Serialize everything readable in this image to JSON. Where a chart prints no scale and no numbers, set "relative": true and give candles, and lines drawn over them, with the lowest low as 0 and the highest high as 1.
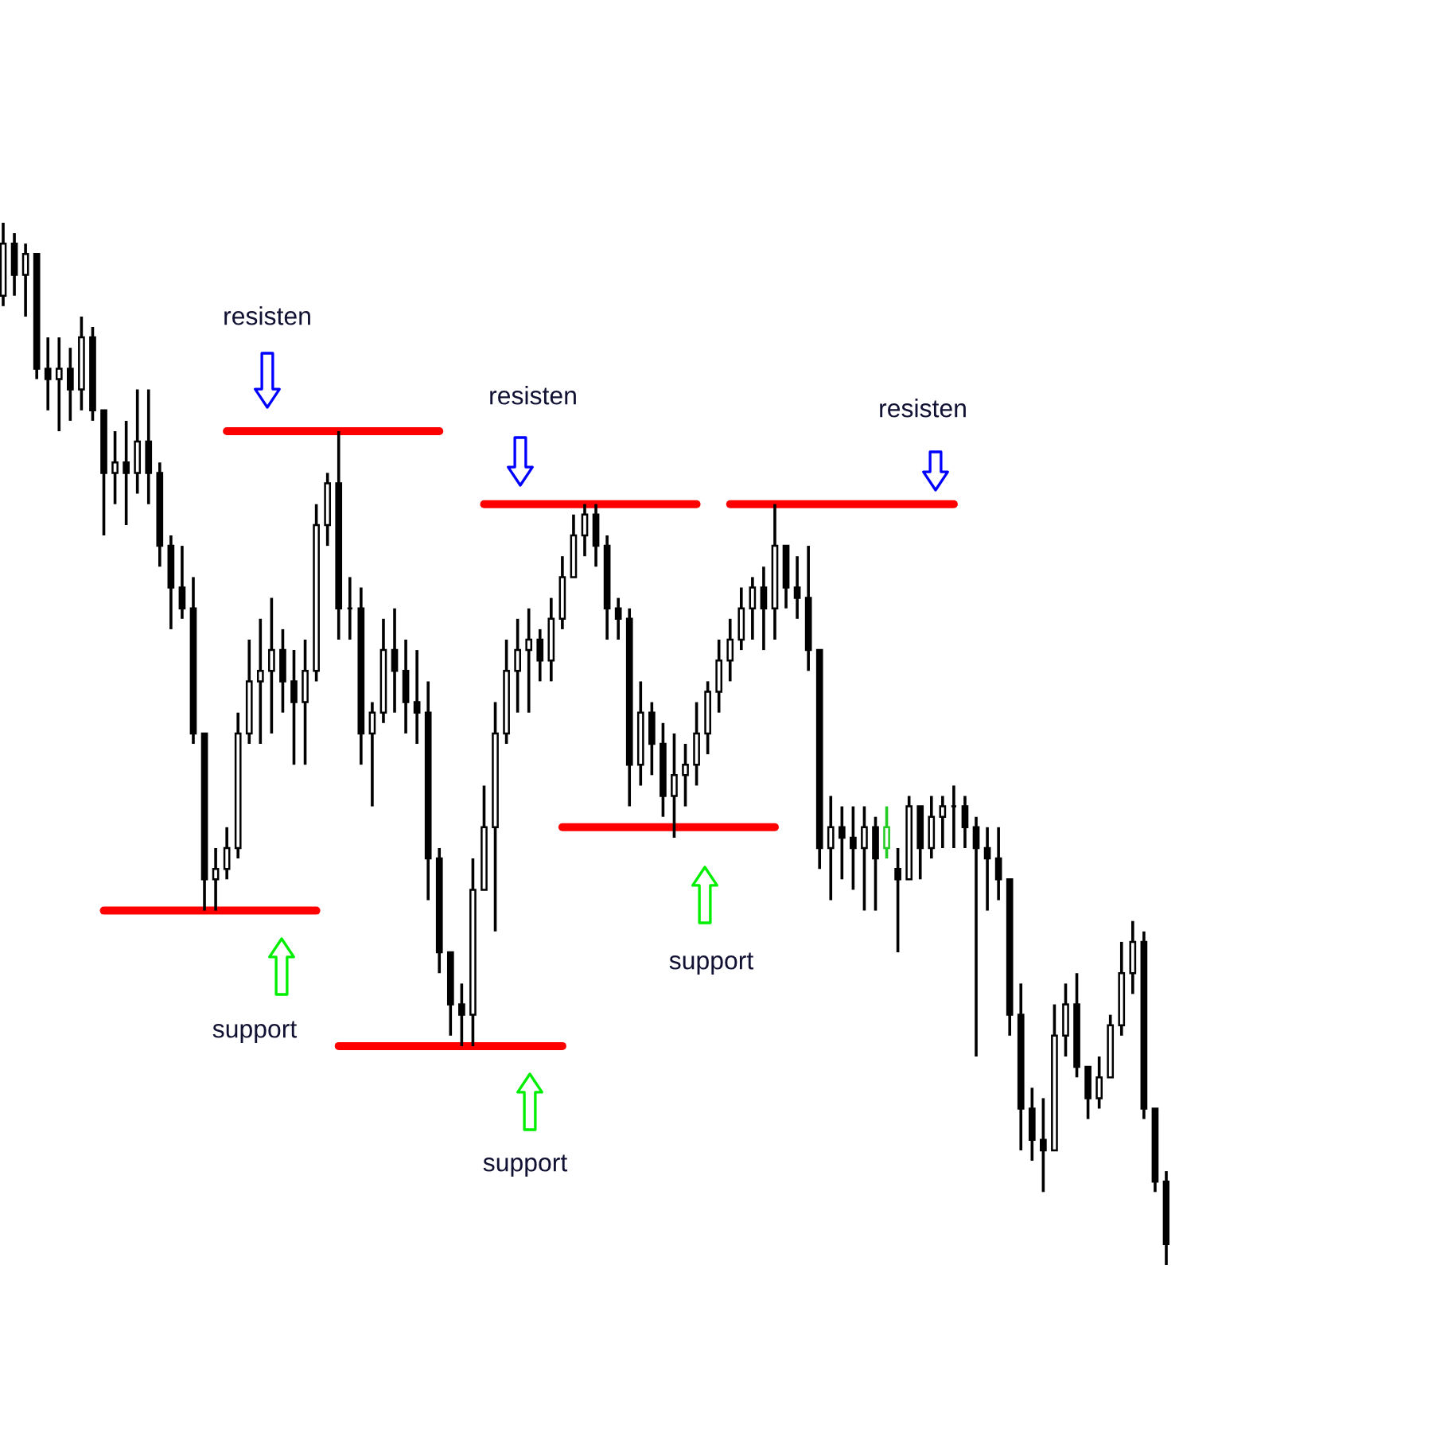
{
  "chart_data": {
    "type": "candlestick",
    "relative": true,
    "categories": [
      null,
      null,
      null,
      null,
      null,
      null,
      null,
      null,
      null,
      null,
      null,
      null,
      null,
      null,
      null,
      null,
      null,
      null,
      null,
      null,
      null,
      null,
      null,
      null,
      null,
      null,
      null,
      null,
      null,
      null,
      null,
      null,
      null,
      null,
      null,
      null,
      null,
      null,
      null,
      null,
      null,
      null,
      null,
      null,
      null,
      null,
      null,
      null,
      null,
      null,
      null,
      null,
      null,
      null,
      null,
      null,
      null,
      null,
      null,
      null,
      null,
      null,
      null,
      null,
      null,
      null,
      null,
      null,
      null,
      null,
      null,
      null,
      null,
      null,
      null,
      null,
      null,
      null,
      null,
      null,
      null,
      null,
      null,
      null,
      null,
      null,
      null,
      null,
      null,
      null,
      null,
      null,
      null,
      null,
      null,
      null,
      null,
      null,
      null,
      null,
      null,
      null,
      null,
      null,
      null
    ],
    "ohlc": [
      [
        0.93,
        1.0,
        0.92,
        0.98
      ],
      [
        0.98,
        0.99,
        0.93,
        0.95
      ],
      [
        0.95,
        0.98,
        0.91,
        0.97
      ],
      [
        0.97,
        0.97,
        0.85,
        0.86
      ],
      [
        0.86,
        0.89,
        0.82,
        0.85
      ],
      [
        0.85,
        0.89,
        0.8,
        0.86
      ],
      [
        0.86,
        0.88,
        0.81,
        0.84
      ],
      [
        0.84,
        0.91,
        0.82,
        0.89
      ],
      [
        0.89,
        0.9,
        0.81,
        0.82
      ],
      [
        0.82,
        0.82,
        0.7,
        0.76
      ],
      [
        0.76,
        0.8,
        0.73,
        0.77
      ],
      [
        0.77,
        0.81,
        0.71,
        0.76
      ],
      [
        0.76,
        0.84,
        0.74,
        0.79
      ],
      [
        0.79,
        0.84,
        0.73,
        0.76
      ],
      [
        0.76,
        0.77,
        0.67,
        0.69
      ],
      [
        0.69,
        0.7,
        0.61,
        0.65
      ],
      [
        0.65,
        0.69,
        0.62,
        0.63
      ],
      [
        0.63,
        0.66,
        0.5,
        0.51
      ],
      [
        0.51,
        0.51,
        0.34,
        0.37
      ],
      [
        0.37,
        0.4,
        0.34,
        0.38
      ],
      [
        0.38,
        0.42,
        0.37,
        0.4
      ],
      [
        0.4,
        0.53,
        0.39,
        0.51
      ],
      [
        0.51,
        0.6,
        0.5,
        0.56
      ],
      [
        0.56,
        0.62,
        0.5,
        0.57
      ],
      [
        0.57,
        0.64,
        0.51,
        0.59
      ],
      [
        0.59,
        0.61,
        0.53,
        0.56
      ],
      [
        0.56,
        0.59,
        0.48,
        0.54
      ],
      [
        0.54,
        0.6,
        0.48,
        0.57
      ],
      [
        0.57,
        0.73,
        0.56,
        0.71
      ],
      [
        0.71,
        0.76,
        0.69,
        0.75
      ],
      [
        0.75,
        0.8,
        0.6,
        0.63
      ],
      [
        0.63,
        0.66,
        0.6,
        0.63
      ],
      [
        0.63,
        0.65,
        0.48,
        0.51
      ],
      [
        0.51,
        0.54,
        0.44,
        0.53
      ],
      [
        0.53,
        0.62,
        0.52,
        0.59
      ],
      [
        0.59,
        0.63,
        0.53,
        0.57
      ],
      [
        0.57,
        0.6,
        0.51,
        0.54
      ],
      [
        0.54,
        0.59,
        0.5,
        0.53
      ],
      [
        0.53,
        0.56,
        0.35,
        0.39
      ],
      [
        0.39,
        0.4,
        0.28,
        0.3
      ],
      [
        0.3,
        0.3,
        0.22,
        0.25
      ],
      [
        0.25,
        0.27,
        0.21,
        0.24
      ],
      [
        0.24,
        0.39,
        0.21,
        0.36
      ],
      [
        0.36,
        0.46,
        0.36,
        0.42
      ],
      [
        0.42,
        0.54,
        0.32,
        0.51
      ],
      [
        0.51,
        0.6,
        0.5,
        0.57
      ],
      [
        0.57,
        0.62,
        0.53,
        0.59
      ],
      [
        0.59,
        0.63,
        0.53,
        0.6
      ],
      [
        0.6,
        0.61,
        0.56,
        0.58
      ],
      [
        0.58,
        0.64,
        0.56,
        0.62
      ],
      [
        0.62,
        0.68,
        0.61,
        0.66
      ],
      [
        0.66,
        0.72,
        0.66,
        0.7
      ],
      [
        0.7,
        0.73,
        0.68,
        0.72
      ],
      [
        0.72,
        0.73,
        0.67,
        0.69
      ],
      [
        0.69,
        0.7,
        0.6,
        0.63
      ],
      [
        0.63,
        0.64,
        0.6,
        0.62
      ],
      [
        0.62,
        0.63,
        0.44,
        0.48
      ],
      [
        0.48,
        0.56,
        0.46,
        0.53
      ],
      [
        0.53,
        0.54,
        0.47,
        0.5
      ],
      [
        0.5,
        0.52,
        0.43,
        0.45
      ],
      [
        0.45,
        0.51,
        0.41,
        0.47
      ],
      [
        0.47,
        0.5,
        0.44,
        0.48
      ],
      [
        0.48,
        0.54,
        0.46,
        0.51
      ],
      [
        0.51,
        0.56,
        0.49,
        0.55
      ],
      [
        0.55,
        0.6,
        0.53,
        0.58
      ],
      [
        0.58,
        0.62,
        0.56,
        0.6
      ],
      [
        0.6,
        0.65,
        0.59,
        0.63
      ],
      [
        0.63,
        0.66,
        0.6,
        0.65
      ],
      [
        0.65,
        0.67,
        0.59,
        0.63
      ],
      [
        0.63,
        0.73,
        0.6,
        0.69
      ],
      [
        0.69,
        0.69,
        0.63,
        0.65
      ],
      [
        0.65,
        0.68,
        0.62,
        0.64
      ],
      [
        0.64,
        0.69,
        0.57,
        0.59
      ],
      [
        0.59,
        0.59,
        0.38,
        0.4
      ],
      [
        0.4,
        0.45,
        0.35,
        0.42
      ],
      [
        0.42,
        0.44,
        0.37,
        0.41
      ],
      [
        0.41,
        0.44,
        0.36,
        0.4
      ],
      [
        0.4,
        0.44,
        0.34,
        0.42
      ],
      [
        0.42,
        0.43,
        0.34,
        0.39
      ],
      [
        0.4,
        0.44,
        0.39,
        0.42
      ],
      [
        0.38,
        0.4,
        0.3,
        0.37
      ],
      [
        0.37,
        0.45,
        0.37,
        0.44
      ],
      [
        0.44,
        0.44,
        0.37,
        0.4
      ],
      [
        0.4,
        0.45,
        0.39,
        0.43
      ],
      [
        0.43,
        0.45,
        0.4,
        0.44
      ],
      [
        0.44,
        0.46,
        0.4,
        0.44
      ],
      [
        0.44,
        0.45,
        0.4,
        0.42
      ],
      [
        0.42,
        0.43,
        0.2,
        0.4
      ],
      [
        0.4,
        0.42,
        0.34,
        0.39
      ],
      [
        0.39,
        0.42,
        0.35,
        0.37
      ],
      [
        0.37,
        0.37,
        0.22,
        0.24
      ],
      [
        0.24,
        0.27,
        0.11,
        0.15
      ],
      [
        0.15,
        0.17,
        0.1,
        0.12
      ],
      [
        0.12,
        0.16,
        0.07,
        0.11
      ],
      [
        0.11,
        0.25,
        0.11,
        0.22
      ],
      [
        0.22,
        0.27,
        0.2,
        0.25
      ],
      [
        0.25,
        0.28,
        0.18,
        0.19
      ],
      [
        0.19,
        0.19,
        0.14,
        0.16
      ],
      [
        0.16,
        0.2,
        0.15,
        0.18
      ],
      [
        0.18,
        0.24,
        0.18,
        0.23
      ],
      [
        0.23,
        0.31,
        0.22,
        0.28
      ],
      [
        0.28,
        0.33,
        0.26,
        0.31
      ],
      [
        0.31,
        0.32,
        0.14,
        0.15
      ],
      [
        0.15,
        0.15,
        0.07,
        0.08
      ],
      [
        0.08,
        0.09,
        0.0,
        0.02
      ]
    ],
    "colors": [
      "#000000",
      "#000000",
      "#000000",
      "#000000",
      "#000000",
      "#000000",
      "#000000",
      "#000000",
      "#000000",
      "#000000",
      "#000000",
      "#000000",
      "#000000",
      "#000000",
      "#000000",
      "#000000",
      "#000000",
      "#000000",
      "#000000",
      "#000000",
      "#000000",
      "#000000",
      "#000000",
      "#000000",
      "#000000",
      "#000000",
      "#000000",
      "#000000",
      "#000000",
      "#000000",
      "#000000",
      "#000000",
      "#000000",
      "#000000",
      "#000000",
      "#000000",
      "#000000",
      "#000000",
      "#000000",
      "#000000",
      "#000000",
      "#000000",
      "#000000",
      "#000000",
      "#000000",
      "#000000",
      "#000000",
      "#000000",
      "#000000",
      "#000000",
      "#000000",
      "#000000",
      "#000000",
      "#000000",
      "#000000",
      "#000000",
      "#000000",
      "#000000",
      "#000000",
      "#000000",
      "#000000",
      "#000000",
      "#000000",
      "#000000",
      "#000000",
      "#000000",
      "#000000",
      "#000000",
      "#000000",
      "#000000",
      "#000000",
      "#000000",
      "#000000",
      "#000000",
      "#000000",
      "#000000",
      "#000000",
      "#000000",
      "#000000",
      "#22cc22",
      "#000000",
      "#000000",
      "#000000",
      "#000000",
      "#000000",
      "#000000",
      "#000000",
      "#000000",
      "#000000",
      "#000000",
      "#000000",
      "#000000",
      "#000000",
      "#000000",
      "#000000",
      "#000000",
      "#000000",
      "#000000",
      "#000000",
      "#000000",
      "#000000",
      "#000000",
      "#000000",
      "#000000",
      "#000000"
    ],
    "series": [
      {
        "type": "line",
        "color": "#ff0000",
        "values": [
          null,
          null,
          null,
          null,
          null,
          null,
          null,
          null,
          null,
          null,
          null,
          null,
          null,
          null,
          null,
          null,
          null,
          null,
          null,
          null,
          0.8,
          0.8,
          0.8,
          0.8,
          0.8,
          0.8,
          0.8,
          0.8,
          0.8,
          0.8,
          0.8,
          0.8,
          0.8,
          0.8,
          0.8,
          0.8,
          0.8,
          0.8,
          0.8,
          0.8,
          null,
          null,
          null,
          null,
          null,
          null,
          null,
          null,
          null,
          null,
          null,
          null,
          null,
          null,
          null,
          null,
          null,
          null,
          null,
          null,
          null,
          null,
          null,
          null,
          null,
          null,
          null,
          null,
          null,
          null,
          null,
          null,
          null,
          null,
          null,
          null,
          null,
          null,
          null,
          null,
          null,
          null,
          null,
          null,
          null,
          null,
          null,
          null,
          null,
          null,
          null,
          null,
          null,
          null,
          null,
          null,
          null,
          null,
          null,
          null,
          null,
          null,
          null,
          null,
          null
        ]
      },
      {
        "type": "line",
        "color": "#ff0000",
        "values": [
          null,
          null,
          null,
          null,
          null,
          null,
          null,
          null,
          null,
          0.34,
          0.34,
          0.34,
          0.34,
          0.34,
          0.34,
          0.34,
          0.34,
          0.34,
          0.34,
          0.34,
          0.34,
          0.34,
          0.34,
          0.34,
          0.34,
          0.34,
          0.34,
          0.34,
          0.34,
          null,
          null,
          null,
          null,
          null,
          null,
          null,
          null,
          null,
          null,
          null,
          null,
          null,
          null,
          null,
          null,
          null,
          null,
          null,
          null,
          null,
          null,
          null,
          null,
          null,
          null,
          null,
          null,
          null,
          null,
          null,
          null,
          null,
          null,
          null,
          null,
          null,
          null,
          null,
          null,
          null,
          null,
          null,
          null,
          null,
          null,
          null,
          null,
          null,
          null,
          null,
          null,
          null,
          null,
          null,
          null,
          null,
          null,
          null,
          null,
          null,
          null,
          null,
          null,
          null,
          null,
          null,
          null,
          null,
          null,
          null,
          null,
          null,
          null,
          null,
          null
        ]
      },
      {
        "type": "line",
        "color": "#ff0000",
        "values": [
          null,
          null,
          null,
          null,
          null,
          null,
          null,
          null,
          null,
          null,
          null,
          null,
          null,
          null,
          null,
          null,
          null,
          null,
          null,
          null,
          null,
          null,
          null,
          null,
          null,
          null,
          null,
          null,
          null,
          null,
          null,
          null,
          null,
          null,
          null,
          null,
          null,
          null,
          null,
          null,
          null,
          null,
          null,
          0.73,
          0.73,
          0.73,
          0.73,
          0.73,
          0.73,
          0.73,
          0.73,
          0.73,
          0.73,
          0.73,
          0.73,
          0.73,
          0.73,
          0.73,
          0.73,
          0.73,
          0.73,
          0.73,
          0.73,
          null,
          null,
          null,
          null,
          null,
          null,
          null,
          null,
          null,
          null,
          null,
          null,
          null,
          null,
          null,
          null,
          null,
          null,
          null,
          null,
          null,
          null,
          null,
          null,
          null,
          null,
          null,
          null,
          null,
          null,
          null,
          null,
          null,
          null,
          null,
          null,
          null,
          null,
          null,
          null,
          null,
          null
        ]
      },
      {
        "type": "line",
        "color": "#ff0000",
        "values": [
          null,
          null,
          null,
          null,
          null,
          null,
          null,
          null,
          null,
          null,
          null,
          null,
          null,
          null,
          null,
          null,
          null,
          null,
          null,
          null,
          null,
          null,
          null,
          null,
          null,
          null,
          null,
          null,
          null,
          null,
          0.21,
          0.21,
          0.21,
          0.21,
          0.21,
          0.21,
          0.21,
          0.21,
          0.21,
          0.21,
          0.21,
          0.21,
          0.21,
          0.21,
          0.21,
          0.21,
          0.21,
          0.21,
          0.21,
          0.21,
          0.21,
          null,
          null,
          null,
          null,
          null,
          null,
          null,
          null,
          null,
          null,
          null,
          null,
          null,
          null,
          null,
          null,
          null,
          null,
          null,
          null,
          null,
          null,
          null,
          null,
          null,
          null,
          null,
          null,
          null,
          null,
          null,
          null,
          null,
          null,
          null,
          null,
          null,
          null,
          null,
          null,
          null,
          null,
          null,
          null,
          null,
          null,
          null,
          null,
          null,
          null,
          null,
          null,
          null,
          null
        ]
      },
      {
        "type": "line",
        "color": "#ff0000",
        "values": [
          null,
          null,
          null,
          null,
          null,
          null,
          null,
          null,
          null,
          null,
          null,
          null,
          null,
          null,
          null,
          null,
          null,
          null,
          null,
          null,
          null,
          null,
          null,
          null,
          null,
          null,
          null,
          null,
          null,
          null,
          null,
          null,
          null,
          null,
          null,
          null,
          null,
          null,
          null,
          null,
          null,
          null,
          null,
          null,
          null,
          null,
          null,
          null,
          null,
          null,
          0.42,
          0.42,
          0.42,
          0.42,
          0.42,
          0.42,
          0.42,
          0.42,
          0.42,
          0.42,
          0.42,
          0.42,
          0.42,
          0.42,
          0.42,
          0.42,
          0.42,
          0.42,
          0.42,
          0.42,
          null,
          null,
          null,
          null,
          null,
          null,
          null,
          null,
          null,
          null,
          null,
          null,
          null,
          null,
          null,
          null,
          null,
          null,
          null,
          null,
          null,
          null,
          null,
          null,
          null,
          null,
          null,
          null,
          null,
          null,
          null,
          null,
          null,
          null,
          null
        ]
      },
      {
        "type": "line",
        "color": "#ff0000",
        "values": [
          null,
          null,
          null,
          null,
          null,
          null,
          null,
          null,
          null,
          null,
          null,
          null,
          null,
          null,
          null,
          null,
          null,
          null,
          null,
          null,
          null,
          null,
          null,
          null,
          null,
          null,
          null,
          null,
          null,
          null,
          null,
          null,
          null,
          null,
          null,
          null,
          null,
          null,
          null,
          null,
          null,
          null,
          null,
          null,
          null,
          null,
          null,
          null,
          null,
          null,
          null,
          null,
          null,
          null,
          null,
          null,
          null,
          null,
          null,
          null,
          null,
          null,
          null,
          null,
          null,
          0.73,
          0.73,
          0.73,
          0.73,
          0.73,
          0.73,
          0.73,
          0.73,
          0.73,
          0.73,
          0.73,
          0.73,
          0.73,
          0.73,
          0.73,
          0.73,
          0.73,
          0.73,
          0.73,
          0.73,
          0.73,
          null,
          null,
          null,
          null,
          null,
          null,
          null,
          null,
          null,
          null,
          null,
          null,
          null,
          null,
          null,
          null,
          null,
          null,
          null
        ]
      }
    ],
    "annotations": [
      "resisten",
      "resisten",
      "resisten",
      "support",
      "support",
      "support"
    ]
  }
}
